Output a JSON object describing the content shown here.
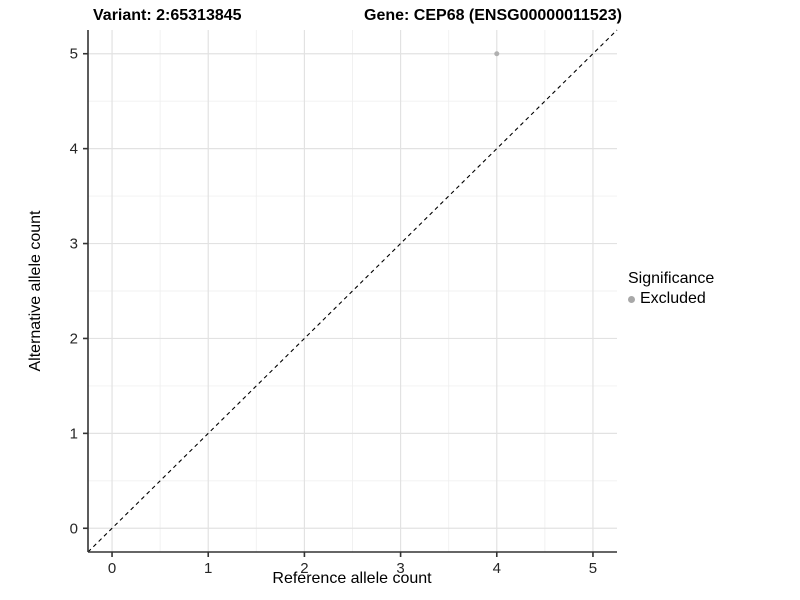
{
  "header": {
    "variant_title": "Variant: 2:65313845",
    "gene_title": "Gene: CEP68 (ENSG00000011523)"
  },
  "legend": {
    "title": "Significance",
    "position": "right",
    "items": [
      {
        "label": "Excluded",
        "color": "#a8a8a8"
      }
    ]
  },
  "chart_data": {
    "type": "scatter",
    "title_left": "Variant: 2:65313845",
    "title_right": "Gene: CEP68 (ENSG00000011523)",
    "xlabel": "Reference allele count",
    "ylabel": "Alternative allele count",
    "xlim": [
      -0.25,
      5.25
    ],
    "ylim": [
      -0.25,
      5.25
    ],
    "x_ticks": [
      0,
      1,
      2,
      3,
      4,
      5
    ],
    "y_ticks": [
      0,
      1,
      2,
      3,
      4,
      5
    ],
    "x_minor": [
      0.5,
      1.5,
      2.5,
      3.5,
      4.5
    ],
    "y_minor": [
      0.5,
      1.5,
      2.5,
      3.5,
      4.5
    ],
    "grid": true,
    "legend_position": "right",
    "points": [
      {
        "x": 4,
        "y": 5,
        "series": "Excluded"
      }
    ],
    "reference_line": {
      "slope": 1,
      "intercept": 0,
      "style": "dashed"
    },
    "colors": {
      "axis": "#333333",
      "grid_major": "#e2e2e2",
      "grid_minor": "#f0f0f0",
      "point": "#b0b0b0",
      "ref_line": "#000000",
      "legend_dot": "#a8a8a8"
    }
  }
}
